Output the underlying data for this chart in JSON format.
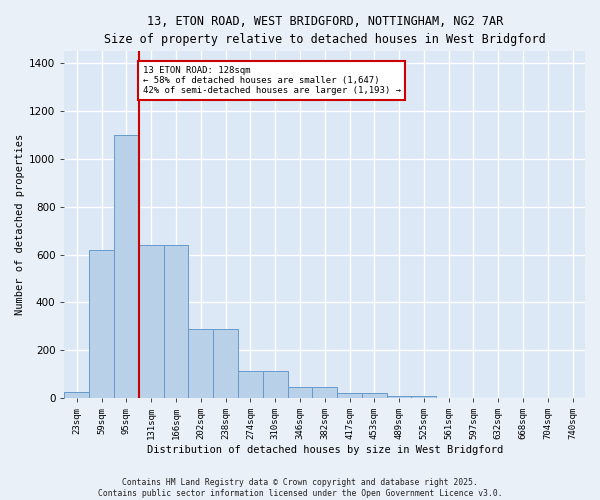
{
  "title_line1": "13, ETON ROAD, WEST BRIDGFORD, NOTTINGHAM, NG2 7AR",
  "title_line2": "Size of property relative to detached houses in West Bridgford",
  "xlabel": "Distribution of detached houses by size in West Bridgford",
  "ylabel": "Number of detached properties",
  "bin_labels": [
    "23sqm",
    "59sqm",
    "95sqm",
    "131sqm",
    "166sqm",
    "202sqm",
    "238sqm",
    "274sqm",
    "310sqm",
    "346sqm",
    "382sqm",
    "417sqm",
    "453sqm",
    "489sqm",
    "525sqm",
    "561sqm",
    "597sqm",
    "632sqm",
    "668sqm",
    "704sqm",
    "740sqm"
  ],
  "bar_heights": [
    25,
    620,
    1100,
    640,
    640,
    290,
    290,
    115,
    115,
    45,
    45,
    20,
    20,
    10,
    10,
    0,
    0,
    0,
    0,
    0,
    0
  ],
  "bar_color": "#b8d0e8",
  "bar_edge_color": "#6699cc",
  "red_line_bin": 3,
  "annotation_text": "13 ETON ROAD: 128sqm\n← 58% of detached houses are smaller (1,647)\n42% of semi-detached houses are larger (1,193) →",
  "annotation_box_color": "#ffffff",
  "annotation_box_edge_color": "#cc0000",
  "red_line_color": "#cc0000",
  "ylim": [
    0,
    1450
  ],
  "yticks": [
    0,
    200,
    400,
    600,
    800,
    1000,
    1200,
    1400
  ],
  "background_color": "#dce8f5",
  "grid_color": "#ffffff",
  "fig_bg_color": "#eaf0f8",
  "footnote": "Contains HM Land Registry data © Crown copyright and database right 2025.\nContains public sector information licensed under the Open Government Licence v3.0."
}
